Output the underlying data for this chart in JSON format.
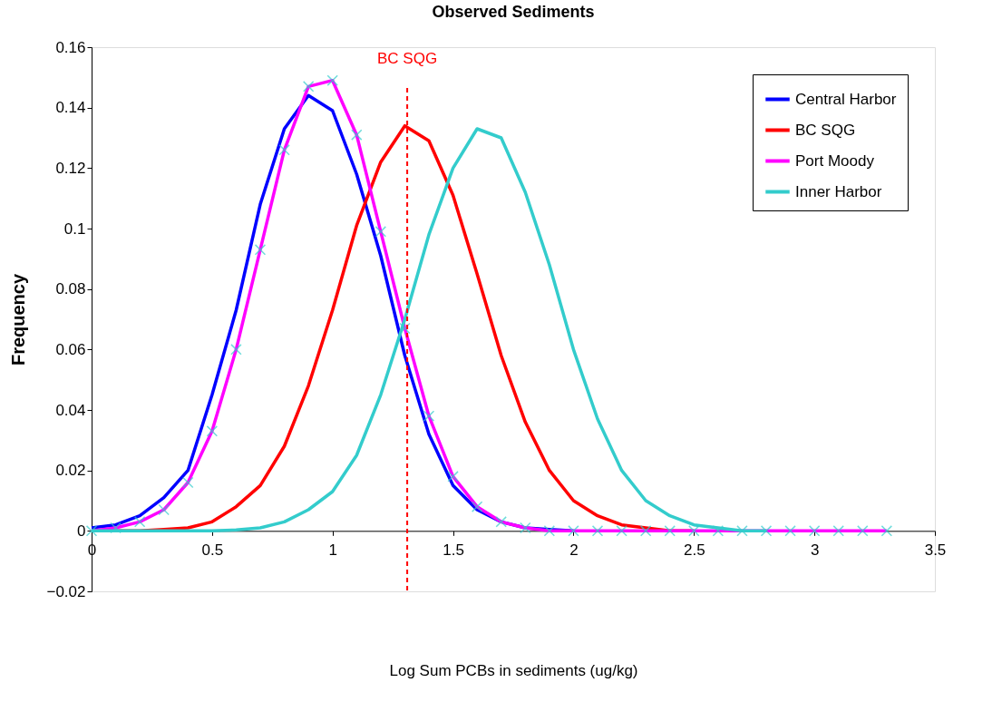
{
  "chart_data": {
    "type": "line",
    "title": "Observed Sediments",
    "xlabel": "Log Sum PCBs in sediments (ug/kg)",
    "ylabel": "Frequency",
    "x": [
      0,
      0.1,
      0.2,
      0.3,
      0.4,
      0.5,
      0.6,
      0.7,
      0.8,
      0.9,
      1.0,
      1.1,
      1.2,
      1.3,
      1.4,
      1.5,
      1.6,
      1.7,
      1.8,
      1.9,
      2.0,
      2.1,
      2.2,
      2.3,
      2.4,
      2.5,
      2.6,
      2.7,
      2.8,
      2.9,
      3.0,
      3.1,
      3.2,
      3.3
    ],
    "series": [
      {
        "name": "Central Harbor",
        "color": "#0000ff",
        "values": [
          0.001,
          0.002,
          0.005,
          0.011,
          0.02,
          0.045,
          0.073,
          0.108,
          0.133,
          0.144,
          0.139,
          0.118,
          0.091,
          0.058,
          0.032,
          0.015,
          0.007,
          0.003,
          0.001,
          0.0005,
          0,
          null,
          null,
          null,
          null,
          null,
          null,
          null,
          null,
          null,
          null,
          null,
          null,
          null
        ]
      },
      {
        "name": "BC SQG",
        "color": "#ff0000",
        "values": [
          0,
          0,
          0,
          0.0005,
          0.001,
          0.003,
          0.008,
          0.015,
          0.028,
          0.048,
          0.073,
          0.101,
          0.122,
          0.134,
          0.129,
          0.111,
          0.085,
          0.058,
          0.036,
          0.02,
          0.01,
          0.005,
          0.002,
          0.001,
          0,
          0,
          null,
          null,
          null,
          null,
          null,
          null,
          null,
          null
        ]
      },
      {
        "name": "Port Moody",
        "color": "#ff00ff",
        "marker": "cross",
        "values": [
          0,
          0.001,
          0.003,
          0.007,
          0.016,
          0.033,
          0.06,
          0.093,
          0.126,
          0.147,
          0.149,
          0.131,
          0.099,
          0.067,
          0.038,
          0.018,
          0.008,
          0.003,
          0.001,
          0,
          0,
          0,
          0,
          0,
          0,
          0,
          0,
          0,
          0,
          0,
          0,
          0,
          0,
          0
        ]
      },
      {
        "name": "Inner Harbor",
        "color": "#33cccc",
        "values": [
          0,
          0,
          0,
          0,
          0,
          0,
          0.0003,
          0.001,
          0.003,
          0.007,
          0.013,
          0.025,
          0.045,
          0.07,
          0.098,
          0.12,
          0.133,
          0.13,
          0.112,
          0.088,
          0.06,
          0.037,
          0.02,
          0.01,
          0.005,
          0.002,
          0.001,
          0,
          0,
          null,
          null,
          null,
          null,
          null
        ]
      }
    ],
    "xlim": [
      0,
      3.5
    ],
    "xticks": [
      0,
      0.5,
      1,
      1.5,
      2,
      2.5,
      3,
      3.5
    ],
    "ylim": [
      -0.02,
      0.16
    ],
    "yticks": [
      -0.02,
      0,
      0.02,
      0.04,
      0.06,
      0.08,
      0.1,
      0.12,
      0.14,
      0.16
    ],
    "ref_lines": [
      {
        "axis": "x",
        "value": 1.31,
        "label": "BC SQG",
        "color": "#ff0000",
        "line_style": "dashed"
      }
    ],
    "legend": "top right",
    "grid": false
  }
}
